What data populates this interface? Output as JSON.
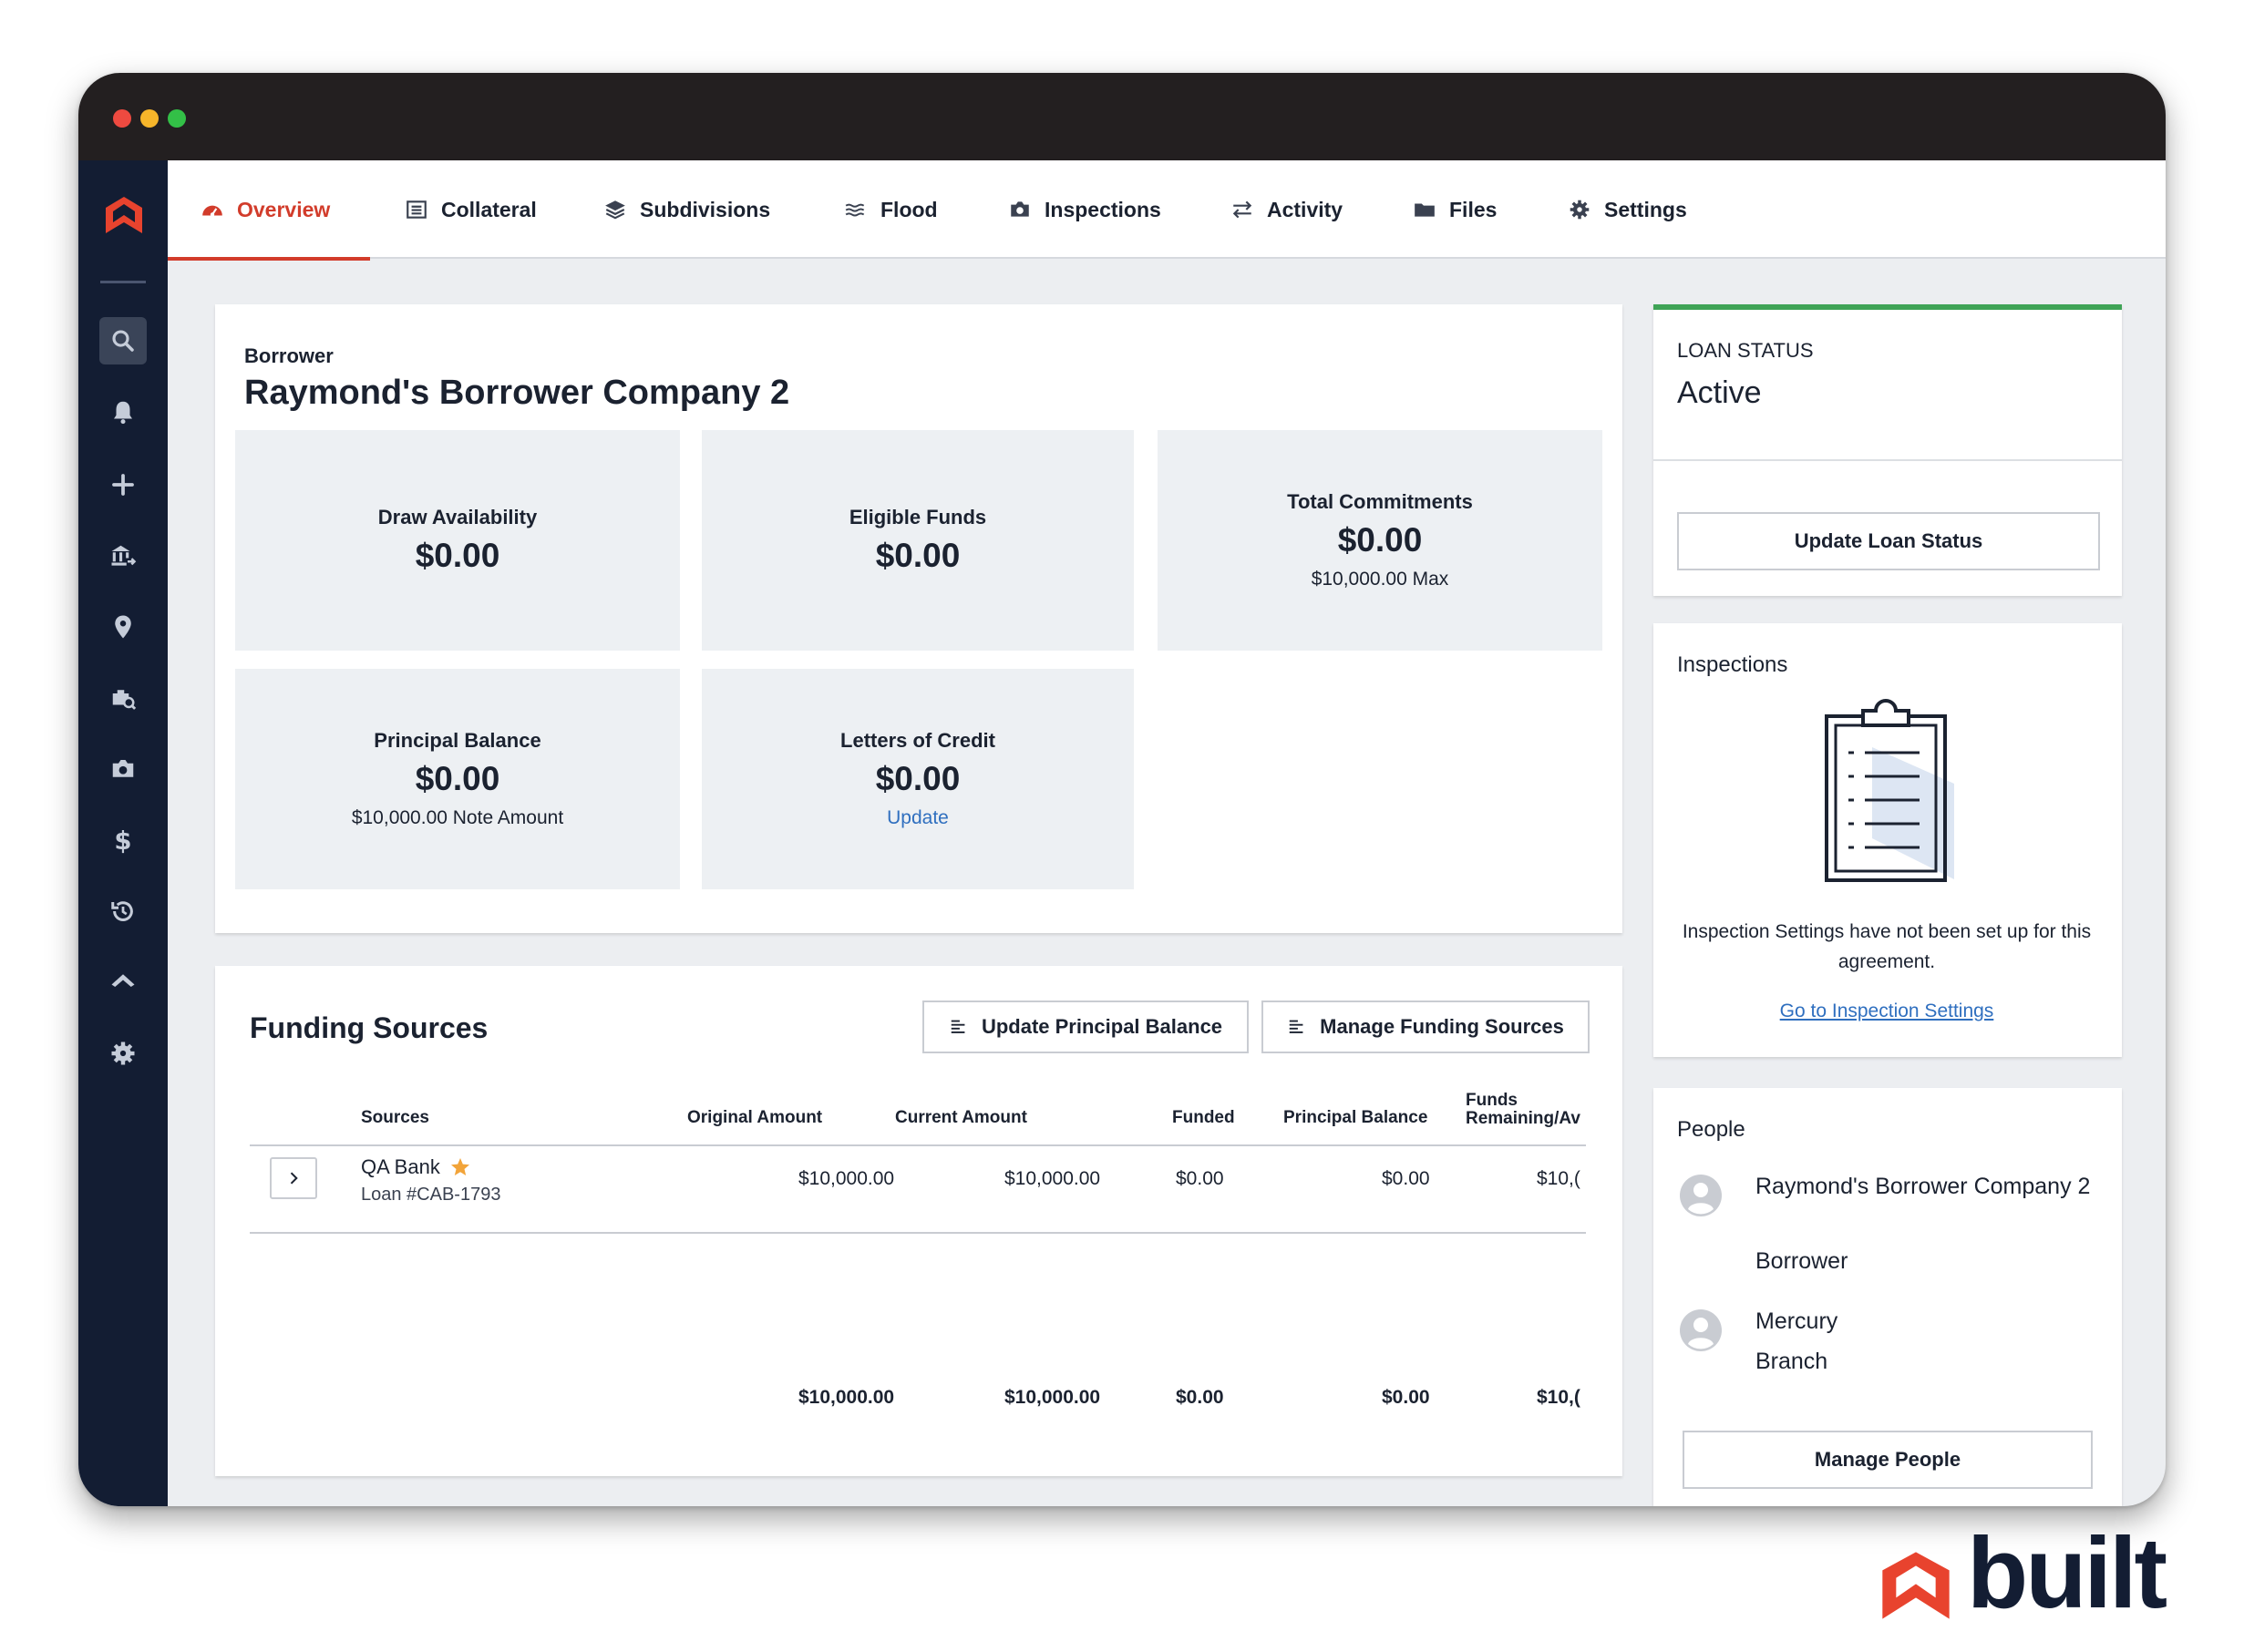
{
  "tabs": [
    {
      "label": "Overview",
      "icon": "dashboard-icon"
    },
    {
      "label": "Collateral",
      "icon": "list-icon"
    },
    {
      "label": "Subdivisions",
      "icon": "layers-icon"
    },
    {
      "label": "Flood",
      "icon": "waves-icon"
    },
    {
      "label": "Inspections",
      "icon": "camera-icon"
    },
    {
      "label": "Activity",
      "icon": "swap-icon"
    },
    {
      "label": "Files",
      "icon": "folder-icon"
    },
    {
      "label": "Settings",
      "icon": "gear-icon"
    }
  ],
  "sidebar": {
    "icons": [
      "search-icon",
      "bell-icon",
      "plus-icon",
      "bank-transfer-icon",
      "location-pin-icon",
      "briefcase-search-icon",
      "camera-icon",
      "dollar-icon",
      "history-icon",
      "home-icon",
      "gear-icon"
    ]
  },
  "borrower": {
    "label": "Borrower",
    "name": "Raymond's Borrower Company 2"
  },
  "stats": {
    "draw_availability": {
      "label": "Draw Availability",
      "value": "$0.00"
    },
    "eligible_funds": {
      "label": "Eligible Funds",
      "value": "$0.00"
    },
    "total_commitments": {
      "label": "Total Commitments",
      "value": "$0.00",
      "sub": "$10,000.00 Max"
    },
    "principal_balance": {
      "label": "Principal Balance",
      "value": "$0.00",
      "sub": "$10,000.00 Note Amount"
    },
    "letters_of_credit": {
      "label": "Letters of Credit",
      "value": "$0.00",
      "link": "Update"
    }
  },
  "funding": {
    "title": "Funding Sources",
    "update_principal_label": "Update Principal Balance",
    "manage_sources_label": "Manage Funding Sources",
    "headers": {
      "sources": "Sources",
      "original": "Original Amount",
      "current": "Current Amount",
      "funded": "Funded",
      "principal": "Principal Balance",
      "remaining_1": "Funds",
      "remaining_2": "Remaining/Av"
    },
    "row": {
      "name": "QA Bank",
      "loan": "Loan #CAB-1793",
      "original": "$10,000.00",
      "current": "$10,000.00",
      "funded": "$0.00",
      "principal": "$0.00",
      "remaining": "$10,("
    },
    "totals": {
      "original": "$10,000.00",
      "current": "$10,000.00",
      "funded": "$0.00",
      "principal": "$0.00",
      "remaining": "$10,("
    }
  },
  "loan_status": {
    "label": "LOAN STATUS",
    "value": "Active",
    "button": "Update Loan Status",
    "accent": "#3fa356"
  },
  "inspections": {
    "title": "Inspections",
    "message": "Inspection Settings have not been set up for this agreement.",
    "link": "Go to Inspection Settings"
  },
  "people": {
    "title": "People",
    "list": [
      {
        "name": "Raymond's Borrower Company 2",
        "role": "Borrower"
      },
      {
        "name": "Mercury",
        "role": "Branch"
      }
    ],
    "button": "Manage People"
  },
  "brand": {
    "name": "built",
    "accent": "#d23c2b",
    "navy": "#131d33"
  }
}
